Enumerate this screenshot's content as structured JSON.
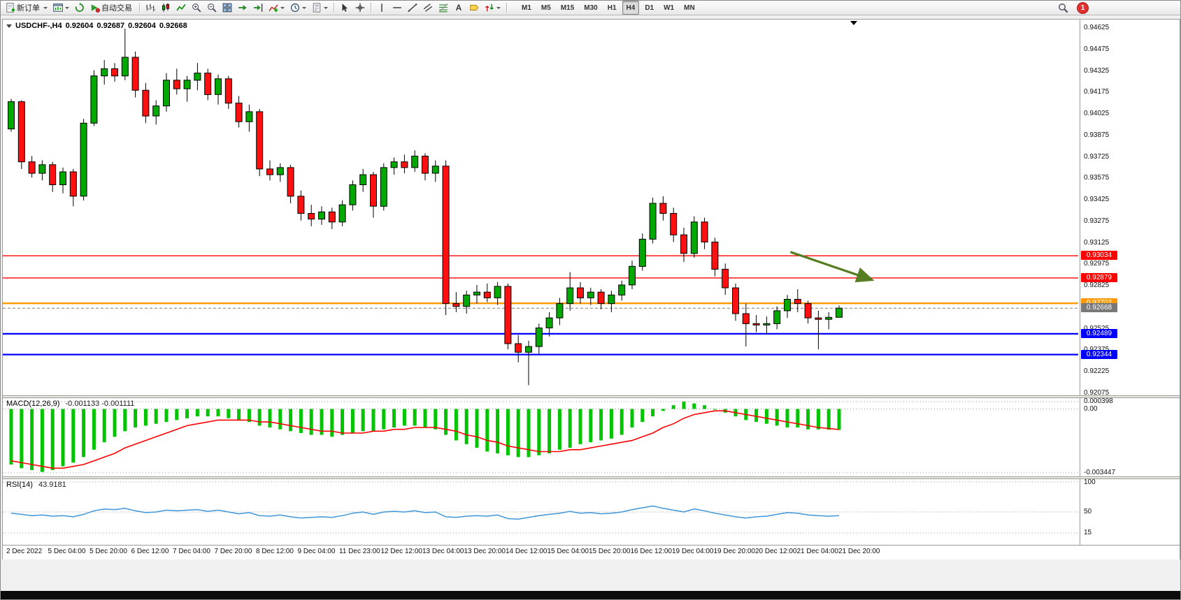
{
  "toolbar": {
    "new_order": {
      "label": "新订单"
    },
    "auto_trading": {
      "label": "自动交易"
    },
    "timeframes": {
      "items": [
        "M1",
        "M5",
        "M15",
        "M30",
        "H1",
        "H4",
        "D1",
        "W1",
        "MN"
      ],
      "active": "H4"
    },
    "notification_count": "1"
  },
  "chart_title": {
    "symbol": "USDCHF-,H4",
    "open": "0.92604",
    "high": "0.92687",
    "low": "0.92604",
    "close": "0.92668"
  },
  "indicators": {
    "macd": {
      "name": "MACD(12,26,9)",
      "values": "-0.001133 -0.001111"
    },
    "rsi": {
      "name": "RSI(14)",
      "value": "43.9181"
    }
  },
  "colors": {
    "candle_up": "#00a800",
    "candle_down": "#ff1010",
    "wick": "#000000",
    "macd_hist": "#00c400",
    "macd_signal": "#ff0000",
    "rsi": "#3f96d9",
    "arrow": "#567d1f",
    "current_price": "#787878"
  },
  "chart_data": [
    {
      "type": "candlestick",
      "symbol": "USDCHF",
      "period": "H4",
      "ylim": [
        0.92075,
        0.94655
      ],
      "y_axis_labels": [
        "0.94625",
        "0.94475",
        "0.94325",
        "0.94175",
        "0.94025",
        "0.93875",
        "0.93725",
        "0.93575",
        "0.93425",
        "0.93275",
        "0.93125",
        "0.92975",
        "0.92825",
        "0.92525",
        "0.92375",
        "0.92225",
        "0.92075"
      ],
      "x_axis_labels": [
        "2 Dec 2022",
        "5 Dec 04:00",
        "5 Dec 20:00",
        "6 Dec 12:00",
        "7 Dec 04:00",
        "7 Dec 20:00",
        "8 Dec 12:00",
        "9 Dec 04:00",
        "11 Dec 23:00",
        "12 Dec 12:00",
        "13 Dec 04:00",
        "13 Dec 20:00",
        "14 Dec 12:00",
        "15 Dec 04:00",
        "15 Dec 20:00",
        "16 Dec 12:00",
        "19 Dec 04:00",
        "19 Dec 20:00",
        "20 Dec 12:00",
        "21 Dec 04:00",
        "21 Dec 20:00"
      ],
      "price_lines": [
        {
          "price": 0.93034,
          "label": "0.93034",
          "color": "#ff0000",
          "style": "solid",
          "width": 1.4
        },
        {
          "price": 0.92879,
          "label": "0.92879",
          "color": "#ff0000",
          "style": "solid",
          "width": 1.4
        },
        {
          "price": 0.92702,
          "label": "0.92702",
          "color": "#ff9900",
          "style": "solid",
          "width": 2.4
        },
        {
          "price": 0.92668,
          "label": "0.92668",
          "color": "#787878",
          "style": "dashed",
          "width": 1
        },
        {
          "price": 0.92489,
          "label": "0.92489",
          "color": "#0000ff",
          "style": "solid",
          "width": 2.2
        },
        {
          "price": 0.92344,
          "label": "0.92344",
          "color": "#0000ff",
          "style": "solid",
          "width": 2.2
        }
      ],
      "annotation_arrow": {
        "x1_index": 75.3,
        "y1_price": 0.9306,
        "x2_index": 83.2,
        "y2_price": 0.92865
      },
      "ohlc": [
        [
          0.9392,
          0.9413,
          0.939,
          0.9411
        ],
        [
          0.9411,
          0.9412,
          0.9364,
          0.9369
        ],
        [
          0.9369,
          0.9373,
          0.9358,
          0.9361
        ],
        [
          0.9361,
          0.937,
          0.9356,
          0.9367
        ],
        [
          0.9367,
          0.9369,
          0.9348,
          0.9353
        ],
        [
          0.9353,
          0.9365,
          0.9347,
          0.9362
        ],
        [
          0.9362,
          0.9364,
          0.9338,
          0.9345
        ],
        [
          0.9345,
          0.9399,
          0.9342,
          0.9396
        ],
        [
          0.9396,
          0.9433,
          0.9394,
          0.9429
        ],
        [
          0.9429,
          0.944,
          0.9423,
          0.9434
        ],
        [
          0.9434,
          0.9438,
          0.9425,
          0.9429
        ],
        [
          0.9429,
          0.9462,
          0.9426,
          0.9442
        ],
        [
          0.9442,
          0.9446,
          0.9414,
          0.9419
        ],
        [
          0.9419,
          0.9424,
          0.9396,
          0.9401
        ],
        [
          0.9401,
          0.9412,
          0.9395,
          0.9408
        ],
        [
          0.9408,
          0.9431,
          0.9404,
          0.9426
        ],
        [
          0.9426,
          0.9434,
          0.9416,
          0.942
        ],
        [
          0.942,
          0.9429,
          0.9411,
          0.9426
        ],
        [
          0.9426,
          0.9438,
          0.9419,
          0.9431
        ],
        [
          0.9431,
          0.9434,
          0.9412,
          0.9416
        ],
        [
          0.9416,
          0.943,
          0.9409,
          0.9427
        ],
        [
          0.9427,
          0.9429,
          0.9406,
          0.941
        ],
        [
          0.941,
          0.9415,
          0.9393,
          0.9397
        ],
        [
          0.9397,
          0.9409,
          0.939,
          0.9404
        ],
        [
          0.9404,
          0.9406,
          0.9359,
          0.9364
        ],
        [
          0.9364,
          0.937,
          0.9356,
          0.936
        ],
        [
          0.936,
          0.9368,
          0.9355,
          0.9365
        ],
        [
          0.9365,
          0.9367,
          0.934,
          0.9345
        ],
        [
          0.9345,
          0.9349,
          0.9328,
          0.9333
        ],
        [
          0.9333,
          0.9339,
          0.9324,
          0.9329
        ],
        [
          0.9329,
          0.9338,
          0.9325,
          0.9334
        ],
        [
          0.9334,
          0.9337,
          0.9322,
          0.9327
        ],
        [
          0.9327,
          0.9342,
          0.9324,
          0.9339
        ],
        [
          0.9339,
          0.9356,
          0.9335,
          0.9353
        ],
        [
          0.9353,
          0.9364,
          0.9348,
          0.936
        ],
        [
          0.936,
          0.9362,
          0.933,
          0.9338
        ],
        [
          0.9338,
          0.9368,
          0.9335,
          0.9365
        ],
        [
          0.9365,
          0.9372,
          0.936,
          0.9369
        ],
        [
          0.9369,
          0.9374,
          0.9361,
          0.9365
        ],
        [
          0.9365,
          0.9377,
          0.9362,
          0.9373
        ],
        [
          0.9373,
          0.9375,
          0.9356,
          0.9361
        ],
        [
          0.9361,
          0.937,
          0.9355,
          0.9366
        ],
        [
          0.9366,
          0.937,
          0.9262,
          0.927
        ],
        [
          0.927,
          0.9278,
          0.9264,
          0.9268
        ],
        [
          0.9268,
          0.9279,
          0.9263,
          0.9276
        ],
        [
          0.9276,
          0.9283,
          0.927,
          0.9278
        ],
        [
          0.9278,
          0.9284,
          0.9271,
          0.9274
        ],
        [
          0.9274,
          0.9285,
          0.9269,
          0.9282
        ],
        [
          0.9282,
          0.9284,
          0.9238,
          0.9242
        ],
        [
          0.9242,
          0.9248,
          0.9229,
          0.9236
        ],
        [
          0.9236,
          0.9244,
          0.9213,
          0.924
        ],
        [
          0.924,
          0.9256,
          0.9235,
          0.9253
        ],
        [
          0.9253,
          0.9264,
          0.9247,
          0.926
        ],
        [
          0.926,
          0.9274,
          0.9255,
          0.927
        ],
        [
          0.927,
          0.9292,
          0.9265,
          0.9281
        ],
        [
          0.9281,
          0.9285,
          0.927,
          0.9274
        ],
        [
          0.9274,
          0.9281,
          0.9269,
          0.9278
        ],
        [
          0.9278,
          0.928,
          0.9266,
          0.927
        ],
        [
          0.927,
          0.9279,
          0.9264,
          0.9276
        ],
        [
          0.9276,
          0.9286,
          0.9272,
          0.9283
        ],
        [
          0.9283,
          0.93,
          0.928,
          0.9296
        ],
        [
          0.9296,
          0.9319,
          0.9293,
          0.9315
        ],
        [
          0.9315,
          0.9344,
          0.9312,
          0.934
        ],
        [
          0.934,
          0.9345,
          0.9328,
          0.9333
        ],
        [
          0.9333,
          0.9337,
          0.9313,
          0.9318
        ],
        [
          0.9318,
          0.9323,
          0.9299,
          0.9305
        ],
        [
          0.9305,
          0.9331,
          0.9302,
          0.9327
        ],
        [
          0.9327,
          0.933,
          0.9308,
          0.9313
        ],
        [
          0.9313,
          0.9316,
          0.9289,
          0.9294
        ],
        [
          0.9294,
          0.9298,
          0.9276,
          0.9281
        ],
        [
          0.9281,
          0.9284,
          0.9258,
          0.9263
        ],
        [
          0.9263,
          0.927,
          0.924,
          0.9256
        ],
        [
          0.9256,
          0.9262,
          0.925,
          0.9255
        ],
        [
          0.9255,
          0.9261,
          0.9249,
          0.9256
        ],
        [
          0.9256,
          0.9268,
          0.9252,
          0.9265
        ],
        [
          0.9265,
          0.9276,
          0.926,
          0.9273
        ],
        [
          0.9273,
          0.928,
          0.9264,
          0.927
        ],
        [
          0.927,
          0.9272,
          0.9256,
          0.926
        ],
        [
          0.926,
          0.9265,
          0.9238,
          0.9259
        ],
        [
          0.9259,
          0.9264,
          0.9252,
          0.92604
        ],
        [
          0.92604,
          0.92687,
          0.92604,
          0.92668
        ]
      ]
    },
    {
      "type": "bar",
      "name": "MACD(12,26,9)",
      "macd_value": -0.001133,
      "signal_value": -0.001111,
      "ylim": [
        -0.003447,
        0.000398
      ],
      "y_axis": [
        {
          "label": "0.000398",
          "value": 0.000398
        },
        {
          "label": "0.00",
          "value": 0
        },
        {
          "label": "-0.003447",
          "value": -0.003447
        }
      ],
      "histogram": [
        -0.003,
        -0.0032,
        -0.0033,
        -0.0034,
        -0.0033,
        -0.0031,
        -0.0029,
        -0.0026,
        -0.0022,
        -0.0018,
        -0.0015,
        -0.0012,
        -0.001,
        -0.0009,
        -0.0008,
        -0.0007,
        -0.0006,
        -0.0005,
        -0.0004,
        -0.0004,
        -0.0004,
        -0.0005,
        -0.0006,
        -0.0007,
        -0.0009,
        -0.001,
        -0.0011,
        -0.0012,
        -0.0013,
        -0.0014,
        -0.0014,
        -0.0015,
        -0.0014,
        -0.0013,
        -0.0012,
        -0.0012,
        -0.0011,
        -0.001,
        -0.0009,
        -0.0009,
        -0.001,
        -0.0011,
        -0.0014,
        -0.0017,
        -0.0019,
        -0.0021,
        -0.0023,
        -0.0024,
        -0.0025,
        -0.0026,
        -0.0026,
        -0.0025,
        -0.0024,
        -0.0022,
        -0.0021,
        -0.0019,
        -0.0018,
        -0.0017,
        -0.0016,
        -0.0014,
        -0.001,
        -0.0007,
        -0.0004,
        -0.0001,
        0.0002,
        0.0004,
        0.0003,
        0.0002,
        0.0,
        -0.0002,
        -0.0004,
        -0.0006,
        -0.0007,
        -0.0008,
        -0.0009,
        -0.001,
        -0.001,
        -0.0011,
        -0.0011,
        -0.00112,
        -0.001133
      ],
      "signal": [
        -0.0028,
        -0.0029,
        -0.003,
        -0.0031,
        -0.0032,
        -0.0032,
        -0.0031,
        -0.003,
        -0.0028,
        -0.0026,
        -0.0024,
        -0.0021,
        -0.0019,
        -0.0017,
        -0.0015,
        -0.0013,
        -0.0011,
        -0.0009,
        -0.0008,
        -0.0007,
        -0.0006,
        -0.0006,
        -0.0006,
        -0.0006,
        -0.0007,
        -0.0007,
        -0.0008,
        -0.0009,
        -0.001,
        -0.0011,
        -0.0012,
        -0.0012,
        -0.0013,
        -0.0013,
        -0.0013,
        -0.0012,
        -0.0012,
        -0.0011,
        -0.0011,
        -0.001,
        -0.001,
        -0.001,
        -0.0011,
        -0.0012,
        -0.0014,
        -0.0015,
        -0.0017,
        -0.0018,
        -0.002,
        -0.0021,
        -0.0022,
        -0.0023,
        -0.0023,
        -0.0023,
        -0.0022,
        -0.0022,
        -0.0021,
        -0.002,
        -0.0019,
        -0.0018,
        -0.0017,
        -0.0015,
        -0.0013,
        -0.001,
        -0.0008,
        -0.0005,
        -0.0003,
        -0.0002,
        -0.0001,
        -0.0001,
        -0.0002,
        -0.0003,
        -0.0004,
        -0.0005,
        -0.0006,
        -0.0007,
        -0.0008,
        -0.0009,
        -0.001,
        -0.00105,
        -0.001111
      ]
    },
    {
      "type": "line",
      "name": "RSI(14)",
      "current": 43.9181,
      "ylim": [
        0,
        100
      ],
      "y_axis": [
        {
          "label": "100",
          "value": 100
        },
        {
          "label": "50",
          "value": 50
        },
        {
          "label": "15",
          "value": 15
        }
      ],
      "values": [
        48,
        46,
        44,
        45,
        43,
        44,
        42,
        46,
        52,
        55,
        54,
        56,
        52,
        49,
        50,
        53,
        52,
        53,
        54,
        51,
        53,
        50,
        47,
        49,
        44,
        43,
        45,
        42,
        40,
        41,
        42,
        41,
        44,
        48,
        50,
        46,
        50,
        51,
        50,
        52,
        49,
        50,
        42,
        41,
        43,
        44,
        43,
        45,
        39,
        38,
        41,
        44,
        46,
        48,
        51,
        48,
        49,
        47,
        48,
        50,
        54,
        57,
        60,
        56,
        53,
        50,
        55,
        52,
        48,
        45,
        42,
        40,
        42,
        43,
        46,
        49,
        48,
        45,
        44,
        43,
        43.9
      ]
    }
  ]
}
